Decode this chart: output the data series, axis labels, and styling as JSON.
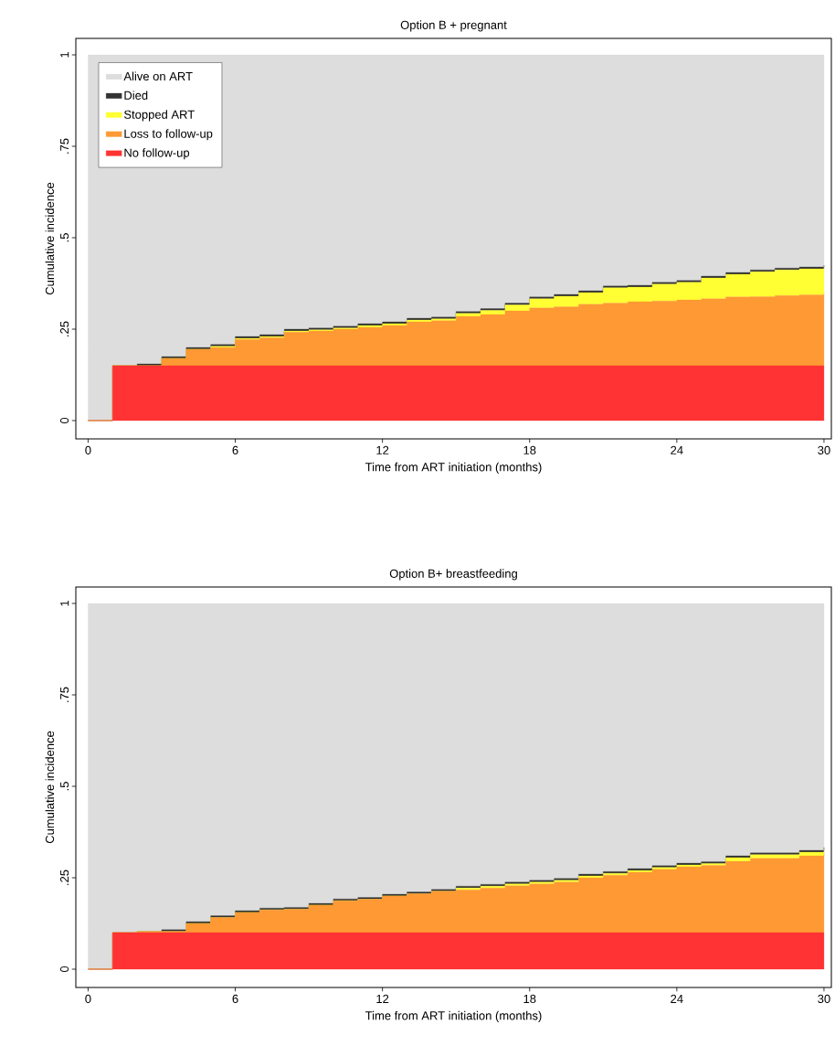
{
  "chart_data": [
    {
      "type": "area",
      "stacked": true,
      "title": "Option B + pregnant",
      "xlabel": "Time from ART initiation (months)",
      "ylabel": "Cumulative incidence",
      "x": [
        0,
        1,
        2,
        3,
        4,
        5,
        6,
        7,
        8,
        9,
        10,
        11,
        12,
        13,
        14,
        15,
        16,
        17,
        18,
        19,
        20,
        21,
        22,
        23,
        24,
        25,
        26,
        27,
        28,
        29,
        30
      ],
      "series": [
        {
          "name": "No follow-up",
          "color": "#ff3333",
          "values": [
            0,
            0.15,
            0.15,
            0.15,
            0.15,
            0.15,
            0.15,
            0.15,
            0.15,
            0.15,
            0.15,
            0.15,
            0.15,
            0.15,
            0.15,
            0.15,
            0.15,
            0.15,
            0.15,
            0.15,
            0.15,
            0.15,
            0.15,
            0.15,
            0.15,
            0.15,
            0.15,
            0.15,
            0.15,
            0.15,
            0.15
          ]
        },
        {
          "name": "Loss to follow-up",
          "color": "#ff9933",
          "values": [
            0,
            0,
            0,
            0.02,
            0.045,
            0.05,
            0.072,
            0.077,
            0.092,
            0.095,
            0.1,
            0.105,
            0.11,
            0.12,
            0.123,
            0.135,
            0.14,
            0.15,
            0.158,
            0.161,
            0.168,
            0.171,
            0.175,
            0.177,
            0.18,
            0.183,
            0.188,
            0.189,
            0.192,
            0.194,
            0.198
          ]
        },
        {
          "name": "Stopped ART",
          "color": "#ffff33",
          "values": [
            0,
            0,
            0,
            0,
            0,
            0.003,
            0.003,
            0.003,
            0.003,
            0.003,
            0.003,
            0.005,
            0.005,
            0.005,
            0.005,
            0.008,
            0.011,
            0.016,
            0.025,
            0.029,
            0.032,
            0.042,
            0.04,
            0.046,
            0.048,
            0.057,
            0.062,
            0.068,
            0.07,
            0.071,
            0.072
          ]
        },
        {
          "name": "Died",
          "color": "#333333",
          "values": [
            0,
            0,
            0.005,
            0.005,
            0.005,
            0.005,
            0.005,
            0.005,
            0.005,
            0.005,
            0.005,
            0.005,
            0.005,
            0.005,
            0.005,
            0.005,
            0.005,
            0.005,
            0.005,
            0.005,
            0.005,
            0.005,
            0.005,
            0.005,
            0.005,
            0.005,
            0.005,
            0.005,
            0.005,
            0.005,
            0.005
          ]
        },
        {
          "name": "Alive on ART",
          "color": "#dddddd",
          "values": [
            1,
            0.85,
            0.845,
            0.825,
            0.8,
            0.792,
            0.77,
            0.765,
            0.75,
            0.747,
            0.742,
            0.735,
            0.73,
            0.72,
            0.717,
            0.702,
            0.694,
            0.679,
            0.662,
            0.655,
            0.645,
            0.632,
            0.63,
            0.622,
            0.617,
            0.605,
            0.595,
            0.588,
            0.583,
            0.58,
            0.575
          ]
        }
      ],
      "xlim": [
        -0.5,
        30.3
      ],
      "ylim": [
        -0.05,
        1.045
      ],
      "xticks": [
        0,
        6,
        12,
        18,
        24,
        30
      ],
      "yticks": [
        {
          "value": 0,
          "label": "0"
        },
        {
          "value": 0.25,
          "label": ".25"
        },
        {
          "value": 0.5,
          "label": ".5"
        },
        {
          "value": 0.75,
          "label": ".75"
        },
        {
          "value": 1,
          "label": "1"
        }
      ],
      "legend": "top left"
    },
    {
      "type": "area",
      "stacked": true,
      "title": "Option B+ breastfeeding",
      "xlabel": "Time from ART initiation (months)",
      "ylabel": "Cumulative incidence",
      "x": [
        0,
        1,
        2,
        3,
        4,
        5,
        6,
        7,
        8,
        9,
        10,
        11,
        12,
        13,
        14,
        15,
        16,
        17,
        18,
        19,
        20,
        21,
        22,
        23,
        24,
        25,
        26,
        27,
        28,
        29,
        30
      ],
      "series": [
        {
          "color": "#ff3333",
          "values": [
            0,
            0.1,
            0.1,
            0.1,
            0.1,
            0.1,
            0.1,
            0.1,
            0.1,
            0.1,
            0.1,
            0.1,
            0.1,
            0.1,
            0.1,
            0.1,
            0.1,
            0.1,
            0.1,
            0.1,
            0.1,
            0.1,
            0.1,
            0.1,
            0.1,
            0.1,
            0.1,
            0.1,
            0.1,
            0.1,
            0.1
          ]
        },
        {
          "color": "#ff9933",
          "values": [
            0,
            0,
            0.003,
            0.003,
            0.025,
            0.041,
            0.055,
            0.062,
            0.064,
            0.075,
            0.087,
            0.091,
            0.1,
            0.106,
            0.113,
            0.117,
            0.122,
            0.128,
            0.133,
            0.138,
            0.15,
            0.157,
            0.165,
            0.173,
            0.18,
            0.184,
            0.195,
            0.203,
            0.203,
            0.21,
            0.218
          ]
        },
        {
          "color": "#ffff33",
          "values": [
            0,
            0,
            0,
            0,
            0,
            0,
            0,
            0,
            0,
            0,
            0,
            0,
            0,
            0,
            0,
            0.005,
            0.005,
            0.005,
            0.005,
            0.005,
            0.005,
            0.005,
            0.005,
            0.005,
            0.005,
            0.005,
            0.01,
            0.01,
            0.01,
            0.01,
            0.01
          ]
        },
        {
          "color": "#333333",
          "values": [
            0,
            0,
            0,
            0.005,
            0.005,
            0.005,
            0.005,
            0.005,
            0.005,
            0.005,
            0.005,
            0.005,
            0.005,
            0.005,
            0.005,
            0.005,
            0.005,
            0.005,
            0.005,
            0.005,
            0.005,
            0.005,
            0.005,
            0.005,
            0.005,
            0.005,
            0.005,
            0.005,
            0.005,
            0.005,
            0.005
          ]
        },
        {
          "color": "#dddddd",
          "values": [
            1,
            0.9,
            0.897,
            0.892,
            0.87,
            0.854,
            0.84,
            0.833,
            0.831,
            0.82,
            0.808,
            0.804,
            0.795,
            0.789,
            0.782,
            0.773,
            0.768,
            0.762,
            0.757,
            0.752,
            0.74,
            0.733,
            0.725,
            0.717,
            0.71,
            0.706,
            0.69,
            0.682,
            0.682,
            0.675,
            0.667
          ]
        }
      ],
      "xlim": [
        -0.5,
        30.3
      ],
      "ylim": [
        -0.05,
        1.045
      ],
      "xticks": [
        0,
        6,
        12,
        18,
        24,
        30
      ],
      "yticks": [
        {
          "value": 0,
          "label": "0"
        },
        {
          "value": 0.25,
          "label": ".25"
        },
        {
          "value": 0.5,
          "label": ".5"
        },
        {
          "value": 0.75,
          "label": ".75"
        },
        {
          "value": 1,
          "label": "1"
        }
      ]
    }
  ]
}
